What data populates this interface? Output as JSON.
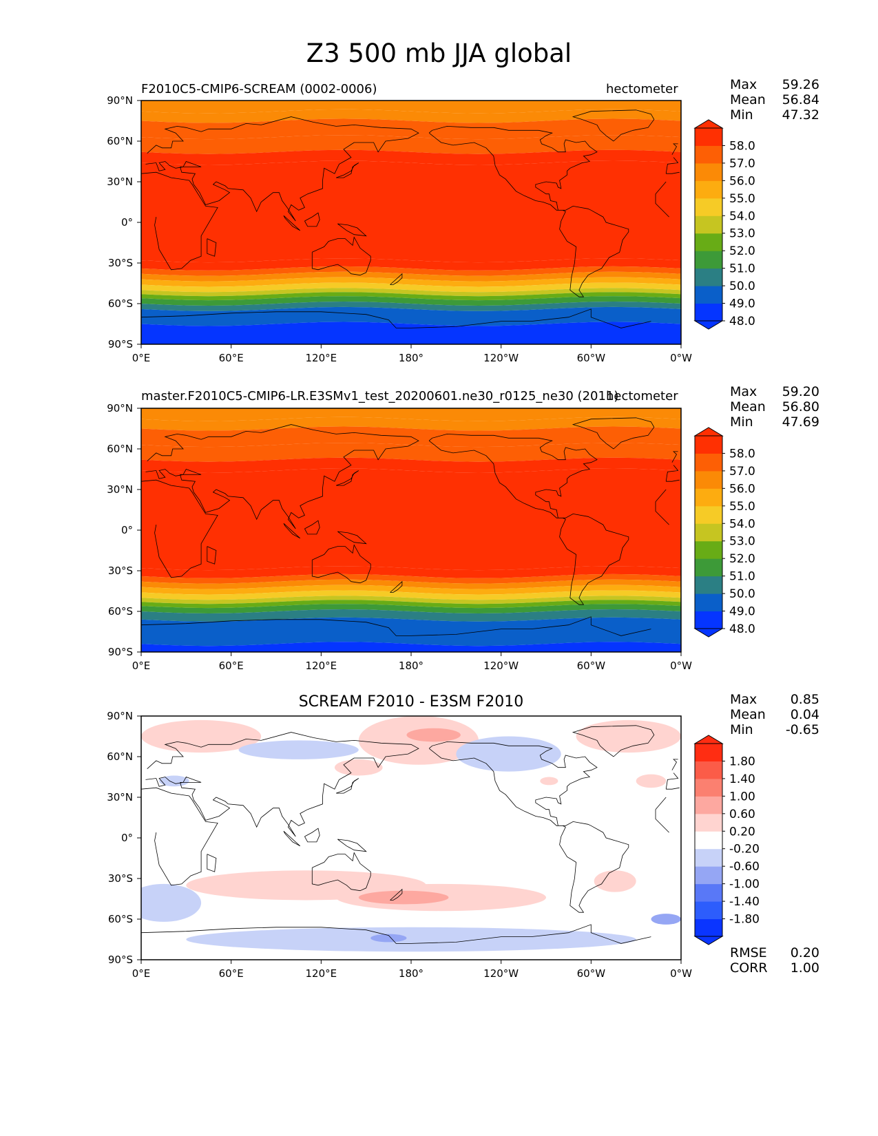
{
  "figure": {
    "title": "Z3 500 mb JJA global"
  },
  "colors": {
    "levels_abs": [
      "#0535ff",
      "#0a5fc9",
      "#2b7f84",
      "#3d9a38",
      "#68ac16",
      "#c6c521",
      "#f6cb26",
      "#fdac10",
      "#fb8a06",
      "#fd5f05",
      "#ff3002"
    ],
    "levels_diff": [
      "#0a35ff",
      "#2d5dfc",
      "#5978f7",
      "#95a6f4",
      "#c7d2f8",
      "#ffffff",
      "#ffd4d0",
      "#fda8a0",
      "#fb8070",
      "#fb5c48",
      "#ff2d12"
    ]
  },
  "chart_data": [
    {
      "type": "heatmap",
      "panel_title_left": "F2010C5-CMIP6-SCREAM (0002-0006)",
      "units": "hectometer",
      "stats": {
        "max_label": "Max",
        "max": "59.26",
        "mean_label": "Mean",
        "mean": "56.84",
        "min_label": "Min",
        "min": "47.32"
      },
      "x_ticks": [
        "0°E",
        "60°E",
        "120°E",
        "180°",
        "120°W",
        "60°W",
        "0°W"
      ],
      "y_ticks": [
        "90°N",
        "60°N",
        "30°N",
        "0°",
        "30°S",
        "60°S",
        "90°S"
      ],
      "colorbar_ticks": [
        "58.0",
        "57.0",
        "56.0",
        "55.0",
        "54.0",
        "53.0",
        "52.0",
        "51.0",
        "50.0",
        "49.0",
        "48.0"
      ],
      "xlim": [
        0,
        360
      ],
      "ylim": [
        -90,
        90
      ],
      "zonal_bands_latitude": [
        {
          "lat_north": 90,
          "lat_south": 82,
          "value": 55.0
        },
        {
          "lat_north": 82,
          "lat_south": 75,
          "value": 55.5
        },
        {
          "lat_north": 75,
          "lat_south": 63,
          "value": 56.0
        },
        {
          "lat_north": 63,
          "lat_south": 52,
          "value": 56.5
        },
        {
          "lat_north": 52,
          "lat_south": 44,
          "value": 57.2
        },
        {
          "lat_north": 44,
          "lat_south": -28,
          "value": 58.5
        },
        {
          "lat_north": -28,
          "lat_south": -34,
          "value": 57.5
        },
        {
          "lat_north": -34,
          "lat_south": -38,
          "value": 56.5
        },
        {
          "lat_north": -38,
          "lat_south": -42,
          "value": 55.5
        },
        {
          "lat_north": -42,
          "lat_south": -46,
          "value": 54.5
        },
        {
          "lat_north": -46,
          "lat_south": -50,
          "value": 53.5
        },
        {
          "lat_north": -50,
          "lat_south": -53,
          "value": 52.5
        },
        {
          "lat_north": -53,
          "lat_south": -56,
          "value": 51.5
        },
        {
          "lat_north": -56,
          "lat_south": -60,
          "value": 50.5
        },
        {
          "lat_north": -60,
          "lat_south": -64,
          "value": 49.5
        },
        {
          "lat_north": -64,
          "lat_south": -75,
          "value": 48.5
        },
        {
          "lat_north": -75,
          "lat_south": -90,
          "value": 47.5
        }
      ]
    },
    {
      "type": "heatmap",
      "panel_title_left": "master.F2010C5-CMIP6-LR.E3SMv1_test_20200601.ne30_r0125_ne30 (2011)",
      "units": "hectometer",
      "stats": {
        "max_label": "Max",
        "max": "59.20",
        "mean_label": "Mean",
        "mean": "56.80",
        "min_label": "Min",
        "min": "47.69"
      },
      "x_ticks": [
        "0°E",
        "60°E",
        "120°E",
        "180°",
        "120°W",
        "60°W",
        "0°W"
      ],
      "y_ticks": [
        "90°N",
        "60°N",
        "30°N",
        "0°",
        "30°S",
        "60°S",
        "90°S"
      ],
      "colorbar_ticks": [
        "58.0",
        "57.0",
        "56.0",
        "55.0",
        "54.0",
        "53.0",
        "52.0",
        "51.0",
        "50.0",
        "49.0",
        "48.0"
      ],
      "xlim": [
        0,
        360
      ],
      "ylim": [
        -90,
        90
      ],
      "zonal_bands_latitude": [
        {
          "lat_north": 90,
          "lat_south": 82,
          "value": 55.0
        },
        {
          "lat_north": 82,
          "lat_south": 75,
          "value": 55.5
        },
        {
          "lat_north": 75,
          "lat_south": 63,
          "value": 56.0
        },
        {
          "lat_north": 63,
          "lat_south": 52,
          "value": 56.5
        },
        {
          "lat_north": 52,
          "lat_south": 44,
          "value": 57.2
        },
        {
          "lat_north": 44,
          "lat_south": -28,
          "value": 58.5
        },
        {
          "lat_north": -28,
          "lat_south": -34,
          "value": 57.5
        },
        {
          "lat_north": -34,
          "lat_south": -38,
          "value": 56.5
        },
        {
          "lat_north": -38,
          "lat_south": -42,
          "value": 55.5
        },
        {
          "lat_north": -42,
          "lat_south": -46,
          "value": 54.5
        },
        {
          "lat_north": -46,
          "lat_south": -50,
          "value": 53.5
        },
        {
          "lat_north": -50,
          "lat_south": -53,
          "value": 52.5
        },
        {
          "lat_north": -53,
          "lat_south": -56,
          "value": 51.5
        },
        {
          "lat_north": -56,
          "lat_south": -60,
          "value": 50.5
        },
        {
          "lat_north": -60,
          "lat_south": -66,
          "value": 49.5
        },
        {
          "lat_north": -66,
          "lat_south": -84,
          "value": 48.5
        },
        {
          "lat_north": -84,
          "lat_south": -90,
          "value": 47.8
        }
      ]
    },
    {
      "type": "heatmap",
      "panel_title_center": "SCREAM F2010 - E3SM F2010",
      "stats": {
        "max_label": "Max",
        "max": "0.85",
        "mean_label": "Mean",
        "mean": "0.04",
        "min_label": "Min",
        "min": "-0.65"
      },
      "metrics": {
        "rmse_label": "RMSE",
        "rmse": "0.20",
        "corr_label": "CORR",
        "corr": "1.00"
      },
      "x_ticks": [
        "0°E",
        "60°E",
        "120°E",
        "180°",
        "120°W",
        "60°W",
        "0°W"
      ],
      "y_ticks": [
        "90°N",
        "60°N",
        "30°N",
        "0°",
        "30°S",
        "60°S",
        "90°S"
      ],
      "colorbar_ticks": [
        "1.80",
        "1.40",
        "1.00",
        "0.60",
        "0.20",
        "-0.20",
        "-0.60",
        "-1.00",
        "-1.40",
        "-1.80"
      ],
      "xlim": [
        0,
        360
      ],
      "ylim": [
        -90,
        90
      ],
      "anomaly_regions": [
        {
          "lon_center": 40,
          "lat_center": 75,
          "lon_halfwidth": 40,
          "lat_halfwidth": 12,
          "value": 0.4
        },
        {
          "lon_center": 105,
          "lat_center": 65,
          "lon_halfwidth": 40,
          "lat_halfwidth": 7,
          "value": -0.4
        },
        {
          "lon_center": 185,
          "lat_center": 72,
          "lon_halfwidth": 40,
          "lat_halfwidth": 18,
          "value": 0.4
        },
        {
          "lon_center": 195,
          "lat_center": 76,
          "lon_halfwidth": 18,
          "lat_halfwidth": 5,
          "value": 0.8
        },
        {
          "lon_center": 245,
          "lat_center": 62,
          "lon_halfwidth": 35,
          "lat_halfwidth": 13,
          "value": -0.4
        },
        {
          "lon_center": 325,
          "lat_center": 75,
          "lon_halfwidth": 35,
          "lat_halfwidth": 12,
          "value": 0.4
        },
        {
          "lon_center": 145,
          "lat_center": 52,
          "lon_halfwidth": 16,
          "lat_halfwidth": 6,
          "value": 0.4
        },
        {
          "lon_center": 272,
          "lat_center": 42,
          "lon_halfwidth": 6,
          "lat_halfwidth": 3,
          "value": 0.4
        },
        {
          "lon_center": 340,
          "lat_center": 42,
          "lon_halfwidth": 10,
          "lat_halfwidth": 5,
          "value": 0.4
        },
        {
          "lon_center": 22,
          "lat_center": 42,
          "lon_halfwidth": 10,
          "lat_halfwidth": 4,
          "value": -0.4
        },
        {
          "lon_center": 110,
          "lat_center": -35,
          "lon_halfwidth": 80,
          "lat_halfwidth": 11,
          "value": 0.4
        },
        {
          "lon_center": 200,
          "lat_center": -44,
          "lon_halfwidth": 70,
          "lat_halfwidth": 10,
          "value": 0.4
        },
        {
          "lon_center": 175,
          "lat_center": -44,
          "lon_halfwidth": 30,
          "lat_halfwidth": 5,
          "value": 0.8
        },
        {
          "lon_center": 316,
          "lat_center": -32,
          "lon_halfwidth": 14,
          "lat_halfwidth": 8,
          "value": 0.4
        },
        {
          "lon_center": 15,
          "lat_center": -48,
          "lon_halfwidth": 25,
          "lat_halfwidth": 14,
          "value": -0.4
        },
        {
          "lon_center": 180,
          "lat_center": -75,
          "lon_halfwidth": 150,
          "lat_halfwidth": 9,
          "value": -0.4
        },
        {
          "lon_center": 165,
          "lat_center": -74,
          "lon_halfwidth": 12,
          "lat_halfwidth": 3,
          "value": -0.8
        },
        {
          "lon_center": 350,
          "lat_center": -60,
          "lon_halfwidth": 10,
          "lat_halfwidth": 4,
          "value": -0.8
        }
      ]
    }
  ]
}
